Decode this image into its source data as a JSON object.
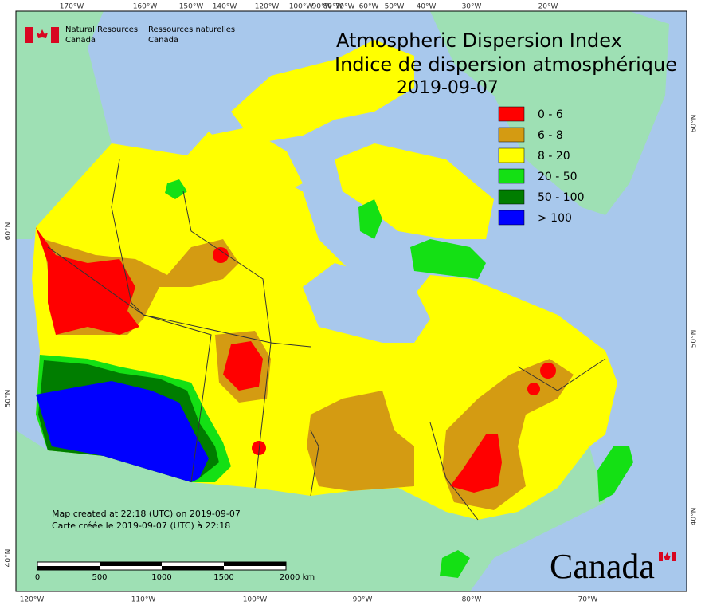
{
  "header": {
    "org_en": [
      "Natural Resources",
      "Canada"
    ],
    "org_fr": [
      "Ressources naturelles",
      "Canada"
    ],
    "title": [
      "Atmospheric Dispersion Index",
      "Indice de dispersion atmosphérique"
    ],
    "date": "2019-09-07"
  },
  "legend": {
    "items": [
      {
        "label": "0 - 6",
        "color": "#ff0000"
      },
      {
        "label": "6 - 8",
        "color": "#d49b12"
      },
      {
        "label": "8 - 20",
        "color": "#ffff00"
      },
      {
        "label": "20 - 50",
        "color": "#14e014"
      },
      {
        "label": "50 - 100",
        "color": "#007d00"
      },
      {
        "label": "> 100",
        "color": "#0000ff"
      }
    ]
  },
  "graticule": {
    "top": [
      "170°W",
      "160°W",
      "150°W",
      "140°W",
      "120°W",
      "100°W",
      "90°W",
      "80°W",
      "70°W",
      "60°W",
      "50°W",
      "40°W",
      "30°W",
      "20°W"
    ],
    "bottom": [
      "120°W",
      "110°W",
      "100°W",
      "90°W",
      "80°W",
      "70°W"
    ],
    "left": [
      "60°N",
      "50°N",
      "40°N"
    ],
    "right": [
      "60°N",
      "50°N",
      "40°N"
    ]
  },
  "footer": {
    "notes": [
      "Map created at 22:18 (UTC) on 2019-09-07",
      "Carte créée le 2019-09-07 (UTC) à 22:18"
    ],
    "scale": [
      "0",
      "500",
      "1000",
      "1500",
      "2000 km"
    ],
    "wordmark": "Canada"
  }
}
